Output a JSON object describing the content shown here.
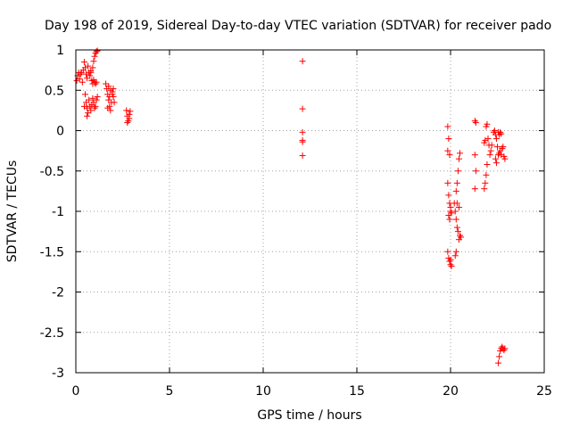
{
  "chart_data": {
    "type": "scatter",
    "title": "Day 198 of 2019, Sidereal Day-to-day VTEC variation (SDTVAR) for receiver pado",
    "xlabel": "GPS time / hours",
    "ylabel": "SDTVAR / TECUs",
    "xlim": [
      0,
      25
    ],
    "ylim": [
      -3,
      1
    ],
    "xticks": [
      0,
      5,
      10,
      15,
      20,
      25
    ],
    "xtick_labels": [
      "0",
      "5",
      "10",
      "15",
      "20",
      "25"
    ],
    "yticks": [
      1,
      0.5,
      0,
      -0.5,
      -1,
      -1.5,
      -2,
      -2.5,
      -3
    ],
    "ytick_labels": [
      "1",
      "0.5",
      "0",
      "-0.5",
      "-1",
      "-1.5",
      "-2",
      "-2.5",
      "-3"
    ],
    "grid": true,
    "marker": "+",
    "color": "#ff0000",
    "series": [
      {
        "name": "SDTVAR",
        "points": [
          [
            0.05,
            0.62
          ],
          [
            0.1,
            0.68
          ],
          [
            0.15,
            0.72
          ],
          [
            0.2,
            0.64
          ],
          [
            0.25,
            0.7
          ],
          [
            0.3,
            0.72
          ],
          [
            0.35,
            0.6
          ],
          [
            0.4,
            0.75
          ],
          [
            0.45,
            0.85
          ],
          [
            0.5,
            0.78
          ],
          [
            0.55,
            0.7
          ],
          [
            0.6,
            0.65
          ],
          [
            0.65,
            0.8
          ],
          [
            0.7,
            0.72
          ],
          [
            0.75,
            0.68
          ],
          [
            0.8,
            0.74
          ],
          [
            0.85,
            0.62
          ],
          [
            0.9,
            0.58
          ],
          [
            0.95,
            0.63
          ],
          [
            1.0,
            0.6
          ],
          [
            1.05,
            0.58
          ],
          [
            1.1,
            0.6
          ],
          [
            0.5,
            0.45
          ],
          [
            0.55,
            0.35
          ],
          [
            0.6,
            0.28
          ],
          [
            0.65,
            0.22
          ],
          [
            0.7,
            0.38
          ],
          [
            0.75,
            0.3
          ],
          [
            0.8,
            0.25
          ],
          [
            0.85,
            0.32
          ],
          [
            0.9,
            0.4
          ],
          [
            0.95,
            0.35
          ],
          [
            1.0,
            0.28
          ],
          [
            1.05,
            0.3
          ],
          [
            1.1,
            0.38
          ],
          [
            1.15,
            0.42
          ],
          [
            0.45,
            0.3
          ],
          [
            0.6,
            0.18
          ],
          [
            0.9,
            0.78
          ],
          [
            0.95,
            0.86
          ],
          [
            1.0,
            0.92
          ],
          [
            1.05,
            0.96
          ],
          [
            1.1,
            0.98
          ],
          [
            1.15,
            0.99
          ],
          [
            0.8,
            0.72
          ],
          [
            1.6,
            0.58
          ],
          [
            1.65,
            0.52
          ],
          [
            1.7,
            0.45
          ],
          [
            1.75,
            0.38
          ],
          [
            1.8,
            0.3
          ],
          [
            1.85,
            0.25
          ],
          [
            1.9,
            0.35
          ],
          [
            1.95,
            0.48
          ],
          [
            2.0,
            0.42
          ],
          [
            2.05,
            0.35
          ],
          [
            1.75,
            0.55
          ],
          [
            1.85,
            0.5
          ],
          [
            1.95,
            0.45
          ],
          [
            1.7,
            0.28
          ],
          [
            2.0,
            0.52
          ],
          [
            1.8,
            0.42
          ],
          [
            2.7,
            0.25
          ],
          [
            2.75,
            0.18
          ],
          [
            2.8,
            0.12
          ],
          [
            2.85,
            0.2
          ],
          [
            2.9,
            0.24
          ],
          [
            2.75,
            0.1
          ],
          [
            2.85,
            0.15
          ],
          [
            12.1,
            0.86
          ],
          [
            12.1,
            0.27
          ],
          [
            12.1,
            -0.02
          ],
          [
            12.1,
            -0.12
          ],
          [
            12.1,
            -0.14
          ],
          [
            12.1,
            -0.31
          ],
          [
            19.85,
            0.05
          ],
          [
            19.85,
            -0.25
          ],
          [
            19.9,
            -0.1
          ],
          [
            19.95,
            -0.3
          ],
          [
            19.85,
            -0.65
          ],
          [
            19.9,
            -0.8
          ],
          [
            19.95,
            -0.9
          ],
          [
            20.0,
            -1.0
          ],
          [
            19.9,
            -1.05
          ],
          [
            20.0,
            -0.95
          ],
          [
            19.95,
            -1.1
          ],
          [
            20.05,
            -1.02
          ],
          [
            19.85,
            -1.5
          ],
          [
            19.9,
            -1.58
          ],
          [
            19.95,
            -1.62
          ],
          [
            20.0,
            -1.66
          ],
          [
            20.05,
            -1.68
          ],
          [
            20.0,
            -1.6
          ],
          [
            20.2,
            -0.9
          ],
          [
            20.25,
            -1.0
          ],
          [
            20.3,
            -1.1
          ],
          [
            20.35,
            -1.2
          ],
          [
            20.4,
            -1.25
          ],
          [
            20.45,
            -1.35
          ],
          [
            20.3,
            -1.5
          ],
          [
            20.25,
            -1.55
          ],
          [
            20.4,
            -0.5
          ],
          [
            20.45,
            -0.35
          ],
          [
            20.5,
            -0.28
          ],
          [
            20.35,
            -0.65
          ],
          [
            20.3,
            -0.75
          ],
          [
            20.5,
            -1.3
          ],
          [
            20.55,
            -1.32
          ],
          [
            20.45,
            -0.95
          ],
          [
            20.35,
            -0.9
          ],
          [
            21.3,
            0.12
          ],
          [
            21.35,
            0.1
          ],
          [
            21.3,
            -0.3
          ],
          [
            21.35,
            -0.5
          ],
          [
            21.3,
            -0.72
          ],
          [
            21.8,
            -0.72
          ],
          [
            21.85,
            -0.65
          ],
          [
            21.9,
            -0.55
          ],
          [
            21.95,
            -0.42
          ],
          [
            21.8,
            -0.15
          ],
          [
            21.85,
            -0.12
          ],
          [
            21.9,
            0.05
          ],
          [
            21.95,
            0.08
          ],
          [
            22.0,
            -0.1
          ],
          [
            22.05,
            -0.18
          ],
          [
            22.1,
            -0.3
          ],
          [
            22.15,
            -0.25
          ],
          [
            22.2,
            -0.18
          ],
          [
            22.3,
            -0.02
          ],
          [
            22.35,
            0.0
          ],
          [
            22.4,
            -0.05
          ],
          [
            22.45,
            -0.1
          ],
          [
            22.5,
            -0.2
          ],
          [
            22.55,
            -0.3
          ],
          [
            22.6,
            -0.28
          ],
          [
            22.65,
            -0.25
          ],
          [
            22.7,
            -0.3
          ],
          [
            22.75,
            -0.22
          ],
          [
            22.8,
            -0.2
          ],
          [
            22.85,
            -0.32
          ],
          [
            22.9,
            -0.35
          ],
          [
            22.4,
            -0.35
          ],
          [
            22.45,
            -0.4
          ],
          [
            22.55,
            -0.02
          ],
          [
            22.6,
            -0.05
          ],
          [
            22.65,
            -0.02
          ],
          [
            22.7,
            -0.04
          ],
          [
            22.55,
            -2.88
          ],
          [
            22.6,
            -2.8
          ],
          [
            22.65,
            -2.73
          ],
          [
            22.7,
            -2.7
          ],
          [
            22.75,
            -2.68
          ],
          [
            22.8,
            -2.7
          ],
          [
            22.85,
            -2.72
          ],
          [
            22.9,
            -2.7
          ]
        ]
      }
    ]
  }
}
